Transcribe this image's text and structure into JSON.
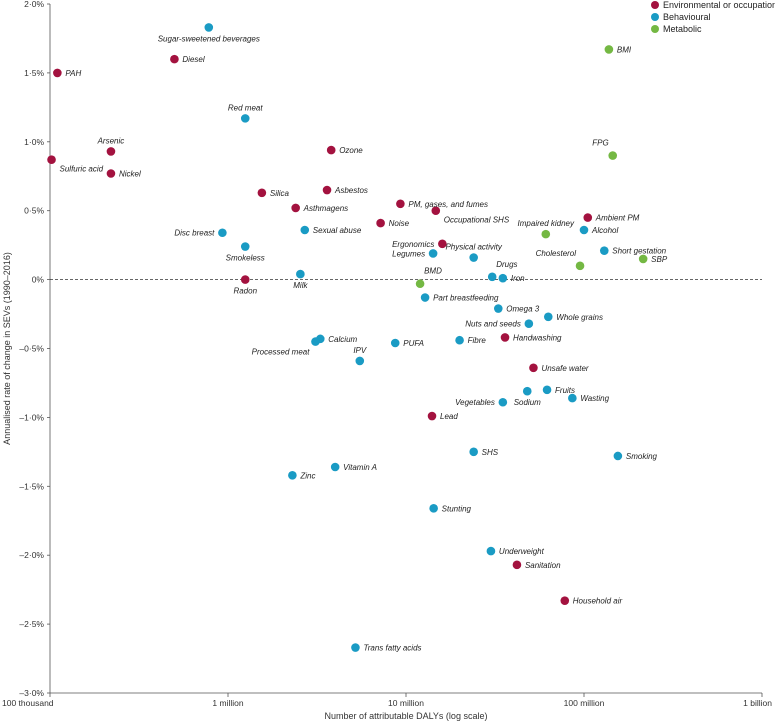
{
  "chart_data": {
    "type": "scatter",
    "title": "",
    "xlabel": "Number of attributable DALYs (log scale)",
    "ylabel": "Annualised rate of change in SEVs (1990–2016)",
    "xscale": "log",
    "xlim": [
      100000,
      1000000000
    ],
    "ylim": [
      -3.0,
      2.0
    ],
    "x_ticks": [
      {
        "value": 100000,
        "label": "100 thousand"
      },
      {
        "value": 1000000,
        "label": "1 million"
      },
      {
        "value": 10000000,
        "label": "10 million"
      },
      {
        "value": 100000000,
        "label": "100 million"
      },
      {
        "value": 1000000000,
        "label": "1 billion"
      }
    ],
    "y_ticks": [
      {
        "value": 2.0,
        "label": "2·0%"
      },
      {
        "value": 1.5,
        "label": "1·5%"
      },
      {
        "value": 1.0,
        "label": "1·0%"
      },
      {
        "value": 0.5,
        "label": "0·5%"
      },
      {
        "value": 0,
        "label": "0%"
      },
      {
        "value": -0.5,
        "label": "–0·5%"
      },
      {
        "value": -1.0,
        "label": "–1·0%"
      },
      {
        "value": -1.5,
        "label": "–1·5%"
      },
      {
        "value": -2.0,
        "label": "–2·0%"
      },
      {
        "value": -2.5,
        "label": "–2·5%"
      },
      {
        "value": -3.0,
        "label": "–3·0%"
      }
    ],
    "zero_line": "dashed",
    "legend_position": "top-right",
    "series": [
      {
        "name": "Environmental or occupational",
        "color": "#a3123f",
        "points": [
          {
            "label": "PAH",
            "x": 110000,
            "y": 1.5,
            "anchor": "right"
          },
          {
            "label": "Diesel",
            "x": 500000,
            "y": 1.6,
            "anchor": "right"
          },
          {
            "label": "Arsenic",
            "x": 220000,
            "y": 0.93,
            "anchor": "above"
          },
          {
            "label": "Sulfuric acid",
            "x": 102000,
            "y": 0.87,
            "anchor": "right-below"
          },
          {
            "label": "Nickel",
            "x": 220000,
            "y": 0.77,
            "anchor": "right"
          },
          {
            "label": "Ozone",
            "x": 3800000,
            "y": 0.94,
            "anchor": "right"
          },
          {
            "label": "Silica",
            "x": 1550000,
            "y": 0.63,
            "anchor": "right"
          },
          {
            "label": "Asbestos",
            "x": 3600000,
            "y": 0.65,
            "anchor": "right"
          },
          {
            "label": "Asthmagens",
            "x": 2400000,
            "y": 0.52,
            "anchor": "right"
          },
          {
            "label": "PM, gases, and fumes",
            "x": 9300000,
            "y": 0.55,
            "anchor": "right"
          },
          {
            "label": "Occupational SHS",
            "x": 14700000,
            "y": 0.5,
            "anchor": "right-below"
          },
          {
            "label": "Noise",
            "x": 7200000,
            "y": 0.41,
            "anchor": "right"
          },
          {
            "label": "Ergonomics",
            "x": 16000000,
            "y": 0.26,
            "anchor": "left"
          },
          {
            "label": "Radon",
            "x": 1250000,
            "y": 0.0,
            "anchor": "below"
          },
          {
            "label": "Handwashing",
            "x": 36000000,
            "y": -0.42,
            "anchor": "right"
          },
          {
            "label": "Unsafe water",
            "x": 52000000,
            "y": -0.64,
            "anchor": "right"
          },
          {
            "label": "Ambient PM",
            "x": 105000000,
            "y": 0.45,
            "anchor": "right"
          },
          {
            "label": "Lead",
            "x": 14000000,
            "y": -0.99,
            "anchor": "right"
          },
          {
            "label": "Sanitation",
            "x": 42000000,
            "y": -2.07,
            "anchor": "right"
          },
          {
            "label": "Household air",
            "x": 78000000,
            "y": -2.33,
            "anchor": "right"
          }
        ]
      },
      {
        "name": "Behavioural",
        "color": "#1a9bc4",
        "points": [
          {
            "label": "Sugar-sweetened beverages",
            "x": 780000,
            "y": 1.83,
            "anchor": "below"
          },
          {
            "label": "Red meat",
            "x": 1250000,
            "y": 1.17,
            "anchor": "above"
          },
          {
            "label": "Disc breast",
            "x": 930000,
            "y": 0.34,
            "anchor": "left"
          },
          {
            "label": "Smokeless",
            "x": 1250000,
            "y": 0.24,
            "anchor": "below"
          },
          {
            "label": "Sexual abuse",
            "x": 2700000,
            "y": 0.36,
            "anchor": "right"
          },
          {
            "label": "Milk",
            "x": 2550000,
            "y": 0.04,
            "anchor": "below"
          },
          {
            "label": "Legumes",
            "x": 14200000,
            "y": 0.19,
            "anchor": "left"
          },
          {
            "label": "Physical activity",
            "x": 24000000,
            "y": 0.16,
            "anchor": "above"
          },
          {
            "label": "Drugs",
            "x": 30500000,
            "y": 0.02,
            "anchor": "above-right"
          },
          {
            "label": "Iron",
            "x": 35000000,
            "y": 0.01,
            "anchor": "right"
          },
          {
            "label": "Alcohol",
            "x": 100000000,
            "y": 0.36,
            "anchor": "right"
          },
          {
            "label": "Short gestation",
            "x": 130000000,
            "y": 0.21,
            "anchor": "right"
          },
          {
            "label": "Part breastfeeding",
            "x": 12800000,
            "y": -0.13,
            "anchor": "right"
          },
          {
            "label": "Omega 3",
            "x": 33000000,
            "y": -0.21,
            "anchor": "right"
          },
          {
            "label": "Nuts and seeds",
            "x": 49000000,
            "y": -0.32,
            "anchor": "left"
          },
          {
            "label": "Whole grains",
            "x": 63000000,
            "y": -0.27,
            "anchor": "right"
          },
          {
            "label": "Calcium",
            "x": 3300000,
            "y": -0.43,
            "anchor": "right"
          },
          {
            "label": "Processed meat",
            "x": 3100000,
            "y": -0.45,
            "anchor": "left-below"
          },
          {
            "label": "IPV",
            "x": 5500000,
            "y": -0.59,
            "anchor": "above"
          },
          {
            "label": "PUFA",
            "x": 8700000,
            "y": -0.46,
            "anchor": "right"
          },
          {
            "label": "Fibre",
            "x": 20000000,
            "y": -0.44,
            "anchor": "right"
          },
          {
            "label": "Vegetables",
            "x": 35000000,
            "y": -0.89,
            "anchor": "left"
          },
          {
            "label": "Sodium",
            "x": 48000000,
            "y": -0.81,
            "anchor": "below"
          },
          {
            "label": "Fruits",
            "x": 62000000,
            "y": -0.8,
            "anchor": "right"
          },
          {
            "label": "Wasting",
            "x": 86000000,
            "y": -0.86,
            "anchor": "right"
          },
          {
            "label": "SHS",
            "x": 24000000,
            "y": -1.25,
            "anchor": "right"
          },
          {
            "label": "Smoking",
            "x": 155000000,
            "y": -1.28,
            "anchor": "right"
          },
          {
            "label": "Vitamin A",
            "x": 4000000,
            "y": -1.36,
            "anchor": "right"
          },
          {
            "label": "Zinc",
            "x": 2300000,
            "y": -1.42,
            "anchor": "right"
          },
          {
            "label": "Stunting",
            "x": 14300000,
            "y": -1.66,
            "anchor": "right"
          },
          {
            "label": "Underweight",
            "x": 30000000,
            "y": -1.97,
            "anchor": "right"
          },
          {
            "label": "Trans fatty acids",
            "x": 5200000,
            "y": -2.67,
            "anchor": "right"
          }
        ]
      },
      {
        "name": "Metabolic",
        "color": "#74b843",
        "points": [
          {
            "label": "BMI",
            "x": 138000000,
            "y": 1.67,
            "anchor": "right"
          },
          {
            "label": "FPG",
            "x": 145000000,
            "y": 0.9,
            "anchor": "above-left"
          },
          {
            "label": "Impaired kidney",
            "x": 61000000,
            "y": 0.33,
            "anchor": "above"
          },
          {
            "label": "Cholesterol",
            "x": 95000000,
            "y": 0.1,
            "anchor": "above-left"
          },
          {
            "label": "SBP",
            "x": 215000000,
            "y": 0.15,
            "anchor": "right"
          },
          {
            "label": "BMD",
            "x": 12000000,
            "y": -0.03,
            "anchor": "above-right"
          }
        ]
      }
    ]
  }
}
